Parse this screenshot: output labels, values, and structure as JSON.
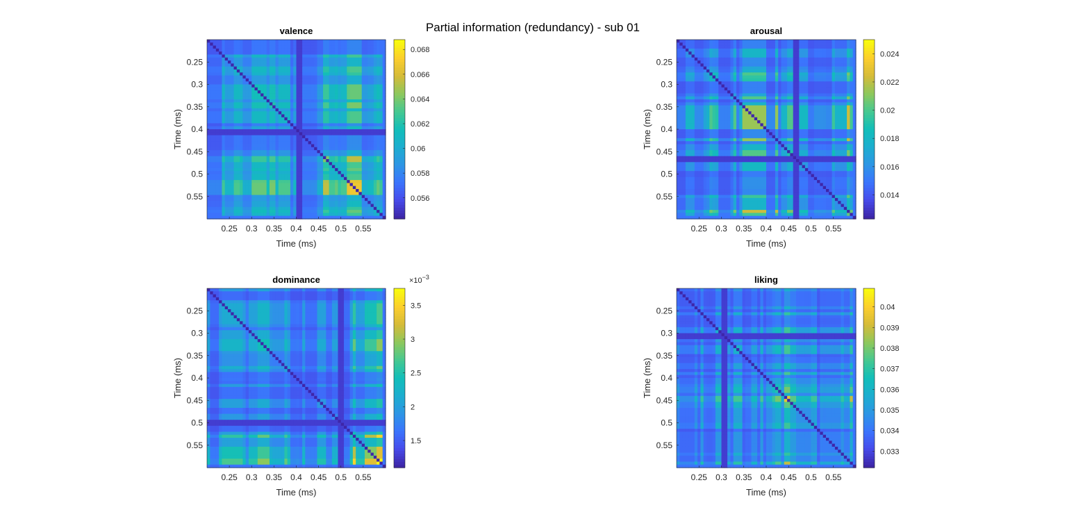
{
  "figure": {
    "suptitle": "Partial information (redundancy) - sub 01"
  },
  "chart_data": [
    {
      "type": "heatmap",
      "title": "valence",
      "xlabel": "Time (ms)",
      "ylabel": "Time (ms)",
      "x_range": [
        0.2,
        0.6
      ],
      "y_range": [
        0.2,
        0.6
      ],
      "y_reversed": true,
      "grid_size": 60,
      "xticks": [
        "0.25",
        "0.3",
        "0.35",
        "0.4",
        "0.45",
        "0.5",
        "0.55"
      ],
      "yticks": [
        "0.25",
        "0.3",
        "0.35",
        "0.4",
        "0.45",
        "0.5",
        "0.55"
      ],
      "colorbar": {
        "min": 0.0543,
        "max": 0.0688,
        "ticks": [
          "0.056",
          "0.058",
          "0.06",
          "0.062",
          "0.064",
          "0.066",
          "0.068"
        ],
        "exponent": ""
      },
      "features": {
        "low_time": 0.41,
        "low_width": 2,
        "diagonal": "min",
        "seed": 11
      }
    },
    {
      "type": "heatmap",
      "title": "arousal",
      "xlabel": "Time (ms)",
      "ylabel": "Time (ms)",
      "x_range": [
        0.2,
        0.6
      ],
      "y_range": [
        0.2,
        0.6
      ],
      "y_reversed": true,
      "grid_size": 60,
      "xticks": [
        "0.25",
        "0.3",
        "0.35",
        "0.4",
        "0.45",
        "0.5",
        "0.55"
      ],
      "yticks": [
        "0.25",
        "0.3",
        "0.35",
        "0.4",
        "0.45",
        "0.5",
        "0.55"
      ],
      "colorbar": {
        "min": 0.0123,
        "max": 0.025,
        "ticks": [
          "0.014",
          "0.016",
          "0.018",
          "0.02",
          "0.022",
          "0.024"
        ],
        "exponent": ""
      },
      "features": {
        "low_time": 0.47,
        "low_width": 2,
        "diagonal": "min",
        "seed": 23
      }
    },
    {
      "type": "heatmap",
      "title": "dominance",
      "xlabel": "Time (ms)",
      "ylabel": "Time (ms)",
      "x_range": [
        0.2,
        0.6
      ],
      "y_range": [
        0.2,
        0.6
      ],
      "y_reversed": true,
      "grid_size": 60,
      "xticks": [
        "0.25",
        "0.3",
        "0.35",
        "0.4",
        "0.45",
        "0.5",
        "0.55"
      ],
      "yticks": [
        "0.25",
        "0.3",
        "0.35",
        "0.4",
        "0.45",
        "0.5",
        "0.55"
      ],
      "colorbar": {
        "min": 1.1,
        "max": 3.75,
        "ticks": [
          "1.5",
          "2",
          "2.5",
          "3",
          "3.5"
        ],
        "exponent": "−3"
      },
      "features": {
        "low_time": 0.5,
        "low_width": 2,
        "diagonal": "min",
        "seed": 37
      }
    },
    {
      "type": "heatmap",
      "title": "liking",
      "xlabel": "Time (ms)",
      "ylabel": "Time (ms)",
      "x_range": [
        0.2,
        0.6
      ],
      "y_range": [
        0.2,
        0.6
      ],
      "y_reversed": true,
      "grid_size": 60,
      "xticks": [
        "0.25",
        "0.3",
        "0.35",
        "0.4",
        "0.45",
        "0.5",
        "0.55"
      ],
      "yticks": [
        "0.25",
        "0.3",
        "0.35",
        "0.4",
        "0.45",
        "0.5",
        "0.55"
      ],
      "colorbar": {
        "min": 0.0322,
        "max": 0.0409,
        "ticks": [
          "0.033",
          "0.034",
          "0.035",
          "0.036",
          "0.037",
          "0.038",
          "0.039",
          "0.04"
        ],
        "exponent": ""
      },
      "features": {
        "low_time": 0.31,
        "low_width": 2,
        "diagonal": "min",
        "seed": 53
      }
    }
  ]
}
